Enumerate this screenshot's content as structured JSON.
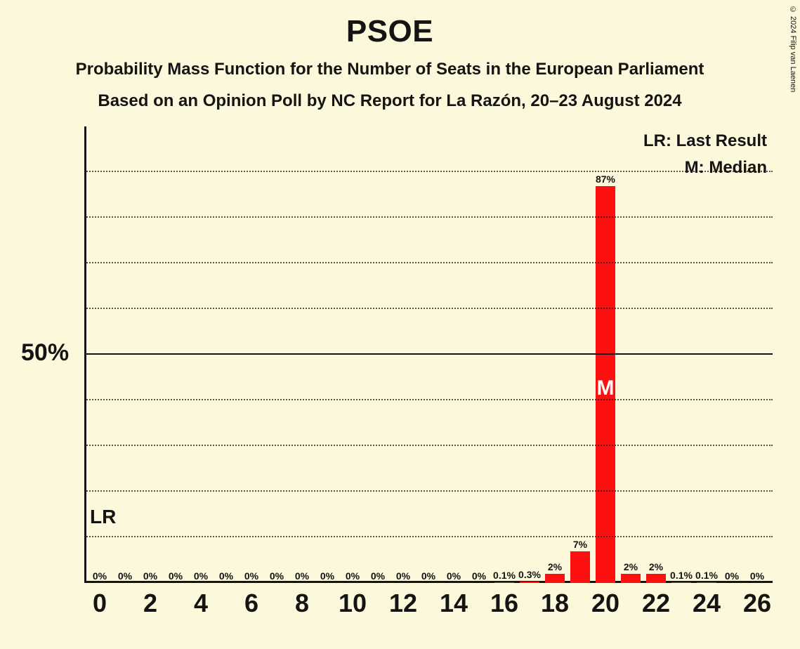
{
  "copyright": "© 2024 Filip van Laenen",
  "title": "PSOE",
  "subtitle1": "Probability Mass Function for the Number of Seats in the European Parliament",
  "subtitle2": "Based on an Opinion Poll by NC Report for La Razón, 20–23 August 2024",
  "legend": {
    "lr": "LR: Last Result",
    "m": "M: Median"
  },
  "lr_marker": "LR",
  "y_axis": {
    "ylim": [
      0,
      100
    ],
    "major_tick": 50,
    "major_tick_label": "50%",
    "minor_step": 10
  },
  "median_label": "M",
  "median_seat": 20,
  "colors": {
    "bar": "#fd1010",
    "bg": "#fbf8db",
    "text": "#161412"
  },
  "chart": {
    "type": "bar",
    "x_values": [
      0,
      1,
      2,
      3,
      4,
      5,
      6,
      7,
      8,
      9,
      10,
      11,
      12,
      13,
      14,
      15,
      16,
      17,
      18,
      19,
      20,
      21,
      22,
      23,
      24,
      25,
      26
    ],
    "y_values": [
      0,
      0,
      0,
      0,
      0,
      0,
      0,
      0,
      0,
      0,
      0,
      0,
      0,
      0,
      0,
      0,
      0.1,
      0.3,
      2,
      7,
      87,
      2,
      2,
      0.1,
      0.1,
      0,
      0
    ],
    "y_labels": [
      "0%",
      "0%",
      "0%",
      "0%",
      "0%",
      "0%",
      "0%",
      "0%",
      "0%",
      "0%",
      "0%",
      "0%",
      "0%",
      "0%",
      "0%",
      "0%",
      "0.1%",
      "0.3%",
      "2%",
      "7%",
      "87%",
      "2%",
      "2%",
      "0.1%",
      "0.1%",
      "0%",
      "0%"
    ],
    "bar_width": 0.78,
    "x_tick_step": 2,
    "x_tick_labels": [
      "0",
      "2",
      "4",
      "6",
      "8",
      "10",
      "12",
      "14",
      "16",
      "18",
      "20",
      "22",
      "24",
      "26"
    ]
  }
}
